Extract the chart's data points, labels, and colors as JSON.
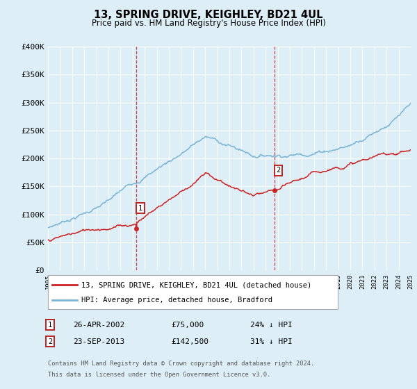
{
  "title": "13, SPRING DRIVE, KEIGHLEY, BD21 4UL",
  "subtitle": "Price paid vs. HM Land Registry's House Price Index (HPI)",
  "ylim": [
    0,
    400000
  ],
  "yticks": [
    0,
    50000,
    100000,
    150000,
    200000,
    250000,
    300000,
    350000,
    400000
  ],
  "ytick_labels": [
    "£0",
    "£50K",
    "£100K",
    "£150K",
    "£200K",
    "£250K",
    "£300K",
    "£350K",
    "£400K"
  ],
  "background_color": "#ddeef7",
  "plot_bg_color": "#ddeef7",
  "hpi_color": "#7ab4d4",
  "price_color": "#cc2222",
  "sale1_x": 2002.32,
  "sale1_y": 75000,
  "sale1_label": "1",
  "sale2_x": 2013.73,
  "sale2_y": 142500,
  "sale2_label": "2",
  "legend_entry1": "13, SPRING DRIVE, KEIGHLEY, BD21 4UL (detached house)",
  "legend_entry2": "HPI: Average price, detached house, Bradford",
  "annotation1_date": "26-APR-2002",
  "annotation1_price": "£75,000",
  "annotation1_hpi": "24% ↓ HPI",
  "annotation2_date": "23-SEP-2013",
  "annotation2_price": "£142,500",
  "annotation2_hpi": "31% ↓ HPI",
  "footnote1": "Contains HM Land Registry data © Crown copyright and database right 2024.",
  "footnote2": "This data is licensed under the Open Government Licence v3.0.",
  "xmin": 1995,
  "xmax": 2025
}
